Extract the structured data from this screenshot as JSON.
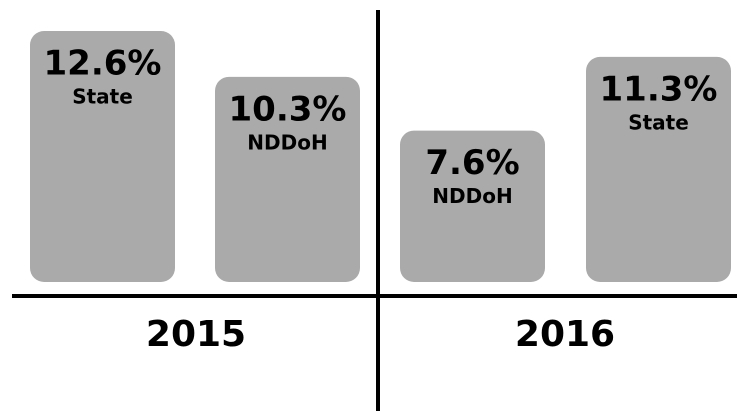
{
  "chart_data": {
    "type": "bar",
    "categories": [
      "2015",
      "2016"
    ],
    "series": [
      {
        "name": "State",
        "color": "#aaaaaa",
        "values": [
          12.6,
          11.3
        ],
        "value_labels": [
          "12.6%",
          "11.3%"
        ]
      },
      {
        "name": "NDDoH",
        "color": "#aaaaaa",
        "values": [
          10.3,
          7.6
        ],
        "value_labels": [
          "10.3%",
          "7.6%"
        ]
      }
    ]
  }
}
